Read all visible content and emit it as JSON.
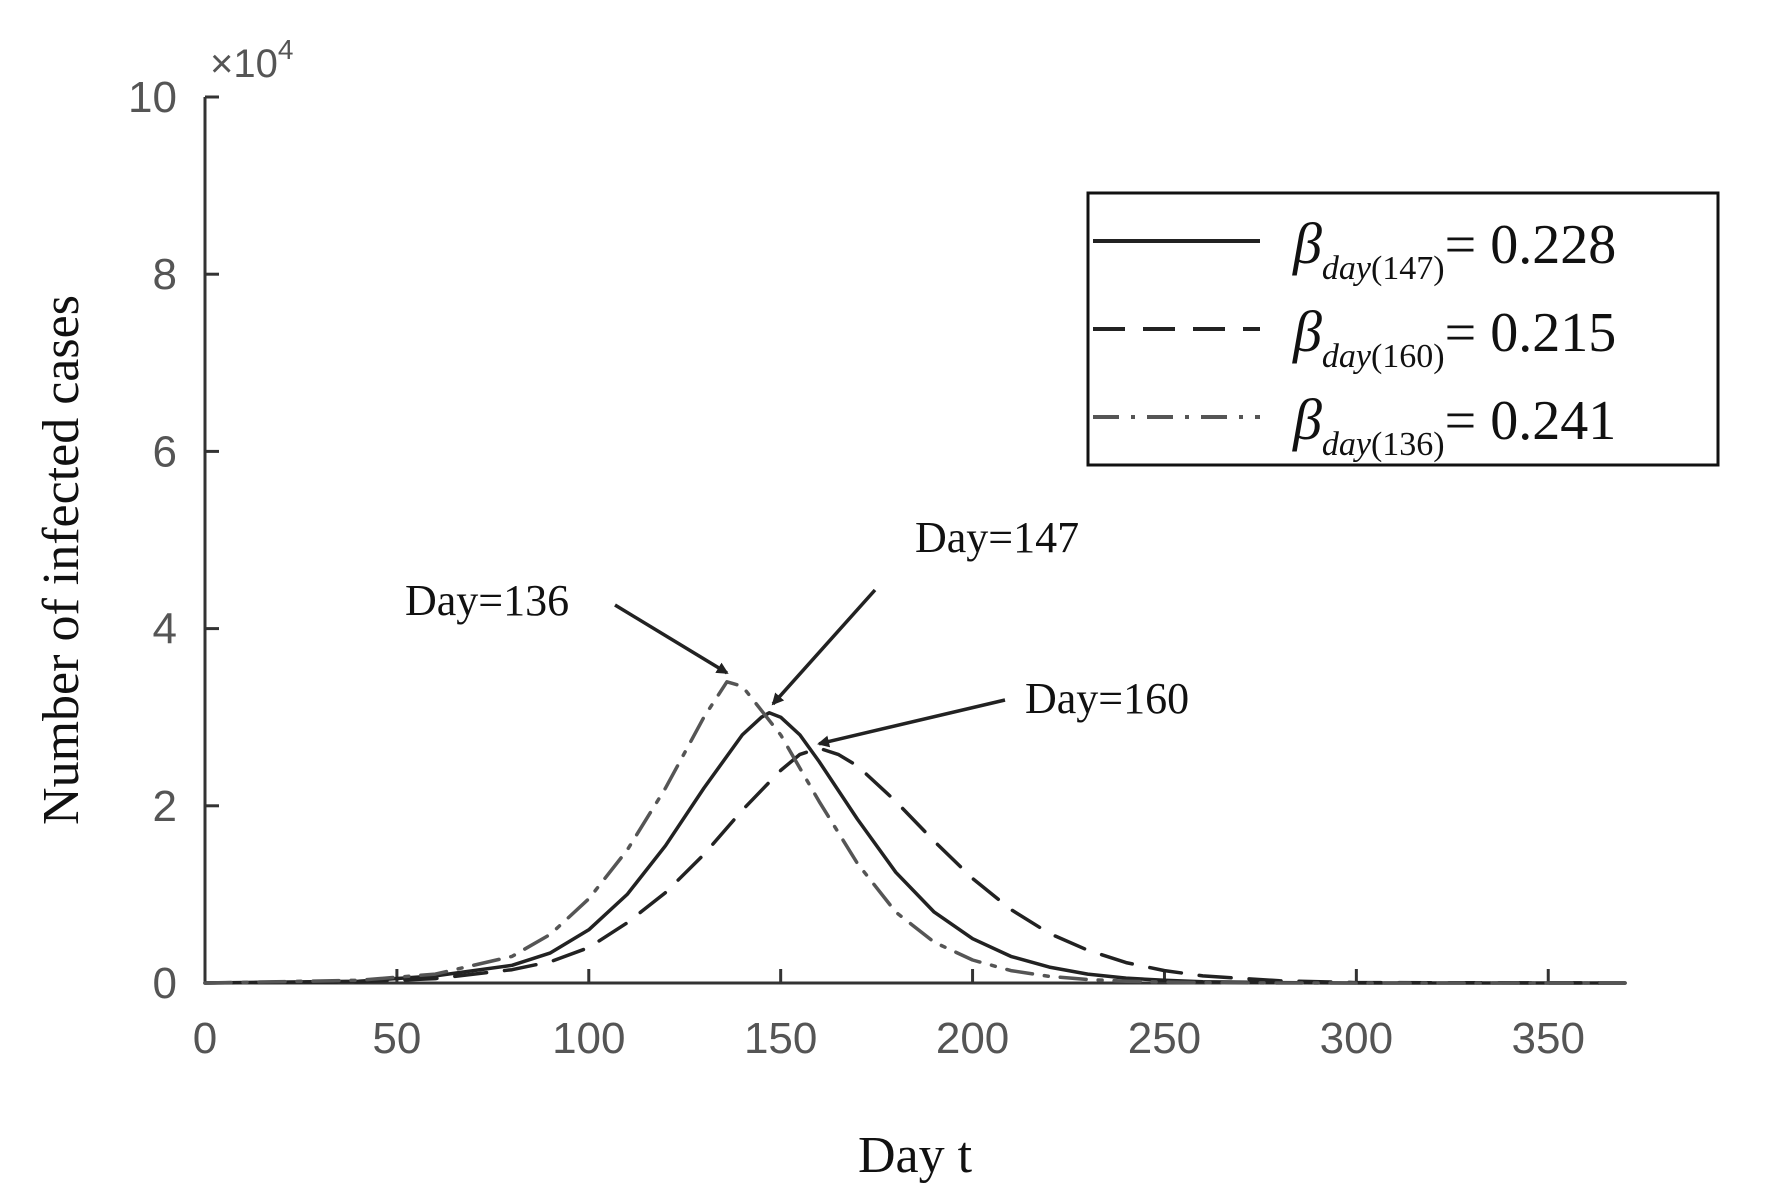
{
  "chart_data": {
    "type": "line",
    "xlabel": "Day t",
    "ylabel": "Number of infected cases",
    "xlim": [
      0,
      370
    ],
    "ylim": [
      0,
      100000
    ],
    "x_ticks": [
      0,
      50,
      100,
      150,
      200,
      250,
      300,
      350
    ],
    "y_ticks": [
      0,
      2,
      4,
      6,
      8,
      10
    ],
    "y_multiplier": {
      "base": "×10",
      "exponent": "4"
    },
    "series": [
      {
        "name": "β day(147) = 0.228",
        "symbol": "β",
        "sub": "day",
        "sub_paren": "(147)",
        "eq": "= 0.228",
        "dash": "solid",
        "color": "#222222",
        "x": [
          0,
          40,
          60,
          80,
          90,
          100,
          110,
          120,
          130,
          140,
          145,
          147,
          150,
          155,
          160,
          170,
          180,
          190,
          200,
          210,
          220,
          230,
          240,
          250,
          260,
          280,
          300,
          370
        ],
        "y": [
          0,
          200,
          800,
          2000,
          3400,
          6000,
          10000,
          15500,
          22000,
          28000,
          30000,
          30500,
          30000,
          28000,
          25000,
          18500,
          12500,
          8000,
          5000,
          3000,
          1800,
          1000,
          550,
          300,
          150,
          40,
          0,
          0
        ]
      },
      {
        "name": "β day(160) = 0.215",
        "symbol": "β",
        "sub": "day",
        "sub_paren": "(160)",
        "eq": "= 0.215",
        "dash": "dashed",
        "color": "#222222",
        "x": [
          0,
          40,
          60,
          80,
          90,
          100,
          110,
          120,
          130,
          140,
          150,
          155,
          160,
          165,
          170,
          180,
          190,
          200,
          210,
          220,
          230,
          240,
          250,
          260,
          280,
          300,
          370
        ],
        "y": [
          0,
          150,
          500,
          1500,
          2400,
          4000,
          6800,
          10200,
          14500,
          19500,
          24000,
          25800,
          26500,
          25800,
          24500,
          20500,
          16000,
          11800,
          8300,
          5600,
          3700,
          2300,
          1400,
          800,
          250,
          50,
          0
        ]
      },
      {
        "name": "β day(136) = 0.241",
        "symbol": "β",
        "sub": "day",
        "sub_paren": "(136)",
        "eq": "= 0.241",
        "dash": "dashdot",
        "color": "#555555",
        "x": [
          0,
          40,
          60,
          80,
          90,
          100,
          110,
          120,
          130,
          136,
          140,
          150,
          160,
          170,
          180,
          190,
          200,
          210,
          220,
          230,
          240,
          250,
          260,
          280,
          300,
          370
        ],
        "y": [
          0,
          300,
          1000,
          3000,
          5500,
          9500,
          15000,
          22000,
          30000,
          34000,
          33500,
          28000,
          20500,
          13500,
          8000,
          4600,
          2600,
          1400,
          750,
          400,
          200,
          100,
          50,
          0,
          0,
          0
        ]
      }
    ],
    "annotations": [
      {
        "text": "Day=136",
        "target": [
          136,
          35000
        ]
      },
      {
        "text": "Day=147",
        "target": [
          148,
          31500
        ]
      },
      {
        "text": "Day=160",
        "target": [
          160,
          27000
        ]
      }
    ],
    "legend_position": "top-right",
    "grid": false
  }
}
